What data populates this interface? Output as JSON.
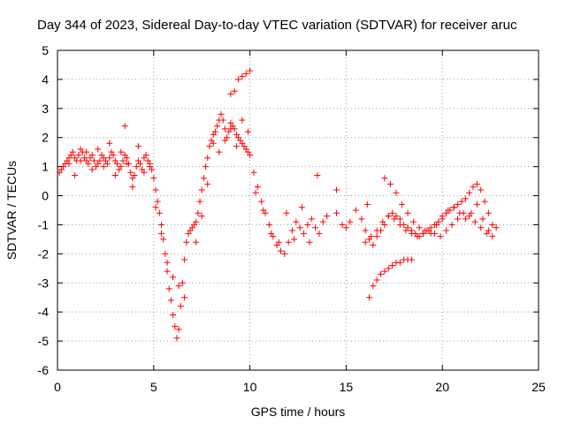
{
  "chart_data": {
    "type": "scatter",
    "title": "Day 344 of 2023, Sidereal Day-to-day VTEC variation (SDTVAR) for receiver aruc",
    "xlabel": "GPS time / hours",
    "ylabel": "SDTVAR / TECUs",
    "xlim": [
      0,
      25
    ],
    "ylim": [
      -6,
      5
    ],
    "x_ticks": [
      0,
      5,
      10,
      15,
      20,
      25
    ],
    "y_ticks": [
      -6,
      -5,
      -4,
      -3,
      -2,
      -1,
      0,
      1,
      2,
      3,
      4,
      5
    ],
    "grid": true,
    "marker": "+",
    "color": "#ff0000",
    "series": [
      {
        "name": "SDTVAR",
        "x": [
          0.1,
          0.2,
          0.3,
          0.4,
          0.5,
          0.6,
          0.7,
          0.8,
          0.9,
          1.0,
          1.1,
          1.2,
          1.3,
          1.4,
          1.5,
          1.6,
          1.7,
          1.8,
          1.9,
          2.0,
          2.1,
          2.2,
          2.3,
          2.4,
          2.5,
          2.6,
          2.7,
          2.8,
          2.9,
          3.0,
          3.1,
          3.2,
          3.3,
          3.4,
          3.5,
          3.6,
          3.7,
          3.8,
          3.9,
          4.0,
          4.1,
          4.2,
          4.3,
          4.4,
          4.5,
          4.6,
          4.7,
          4.8,
          4.9,
          5.0,
          5.1,
          5.2,
          5.3,
          5.4,
          5.5,
          5.6,
          5.7,
          5.8,
          5.9,
          6.0,
          6.1,
          6.2,
          6.3,
          6.4,
          6.5,
          6.6,
          6.7,
          6.8,
          6.9,
          7.0,
          7.1,
          7.2,
          7.3,
          7.4,
          7.5,
          7.6,
          7.7,
          7.8,
          7.9,
          8.0,
          8.1,
          8.2,
          8.3,
          8.4,
          8.5,
          8.6,
          8.7,
          8.8,
          8.9,
          9.0,
          9.1,
          9.2,
          9.3,
          9.4,
          9.5,
          9.6,
          9.7,
          9.8,
          9.9,
          10.0,
          10.2,
          10.4,
          10.6,
          10.8,
          11.0,
          11.2,
          11.4,
          11.6,
          11.8,
          12.0,
          12.2,
          12.4,
          12.6,
          12.8,
          13.0,
          13.2,
          13.4,
          13.6,
          13.8,
          14.0,
          14.5,
          14.8,
          15.0,
          15.2,
          15.5,
          15.8,
          16.0,
          16.2,
          16.4,
          16.6,
          16.8,
          17.0,
          17.2,
          17.4,
          17.6,
          17.8,
          18.0,
          18.2,
          18.4,
          18.6,
          18.8,
          19.0,
          19.2,
          19.4,
          19.6,
          19.8,
          20.0,
          20.2,
          20.4,
          20.6,
          20.8,
          21.0,
          21.2,
          21.4,
          21.6,
          21.8,
          22.0,
          22.2,
          22.4,
          22.6,
          22.8,
          0.6,
          0.9,
          1.2,
          1.5,
          1.8,
          2.1,
          2.4,
          2.7,
          3.0,
          3.3,
          3.6,
          3.9,
          4.2,
          4.5,
          4.8,
          5.1,
          5.4,
          5.7,
          6.0,
          6.3,
          6.6,
          7.2,
          7.5,
          7.8,
          8.1,
          8.4,
          8.7,
          9.0,
          9.3,
          9.6,
          9.9,
          10.3,
          10.7,
          11.1,
          11.5,
          11.9,
          12.3,
          12.7,
          13.1,
          13.5,
          16.2,
          16.4,
          16.6,
          16.8,
          17.0,
          17.2,
          17.4,
          17.6,
          17.8,
          18.0,
          18.2,
          18.4,
          16.0,
          16.3,
          16.6,
          16.9,
          17.2,
          17.5,
          17.8,
          18.1,
          18.4,
          18.7,
          19.0,
          19.3,
          19.6,
          19.9,
          20.2,
          20.5,
          20.8,
          21.1,
          21.4,
          21.7,
          22.0,
          22.3,
          22.6,
          17.0,
          17.3,
          17.6,
          17.9,
          18.2,
          18.5,
          18.8,
          19.1,
          19.4,
          19.7,
          20.0,
          20.3,
          20.6,
          20.9,
          21.2,
          21.5,
          21.8,
          22.1,
          22.4,
          3.5,
          9.0,
          9.2,
          9.4,
          9.6,
          9.8,
          10.0,
          14.5,
          16.1
        ],
        "y": [
          0.8,
          0.9,
          1.0,
          1.1,
          1.2,
          1.3,
          1.4,
          1.5,
          1.3,
          1.2,
          1.4,
          1.6,
          1.5,
          1.3,
          1.2,
          1.1,
          1.3,
          1.4,
          1.2,
          1.0,
          1.1,
          1.2,
          1.4,
          1.3,
          1.2,
          1.1,
          1.3,
          1.5,
          1.4,
          1.2,
          1.1,
          0.9,
          1.0,
          1.2,
          1.4,
          1.3,
          1.1,
          0.8,
          0.6,
          0.7,
          1.0,
          1.2,
          1.1,
          0.9,
          1.3,
          1.4,
          1.2,
          1.0,
          0.9,
          0.6,
          0.2,
          -0.2,
          -0.6,
          -1.0,
          -1.5,
          -2.0,
          -2.6,
          -3.2,
          -3.6,
          -4.1,
          -4.5,
          -4.9,
          -4.6,
          -3.8,
          -3.0,
          -2.2,
          -1.6,
          -1.3,
          -1.2,
          -1.1,
          -1.0,
          -0.9,
          -0.6,
          -0.2,
          0.2,
          0.6,
          1.0,
          1.3,
          1.7,
          1.9,
          2.1,
          2.2,
          2.4,
          2.6,
          2.8,
          2.6,
          2.3,
          2.0,
          2.2,
          2.5,
          2.4,
          2.3,
          2.1,
          2.0,
          1.9,
          1.8,
          1.7,
          1.6,
          1.5,
          1.4,
          0.8,
          0.3,
          -0.2,
          -0.6,
          -1.0,
          -1.4,
          -1.7,
          -1.9,
          -2.0,
          -1.6,
          -1.2,
          -0.9,
          -1.1,
          -1.3,
          -1.0,
          -0.8,
          -1.1,
          -1.3,
          -0.9,
          -0.7,
          -0.6,
          -1.0,
          -1.1,
          -0.9,
          -0.5,
          -0.8,
          -1.2,
          -1.5,
          -1.7,
          -1.4,
          -1.2,
          -1.0,
          -0.7,
          -0.6,
          -0.7,
          -0.8,
          -1.0,
          -1.1,
          -1.2,
          -1.3,
          -1.4,
          -1.3,
          -1.2,
          -1.1,
          -1.0,
          -0.9,
          -0.8,
          -0.6,
          -0.5,
          -0.4,
          -0.3,
          -0.2,
          -0.1,
          0.1,
          0.3,
          0.4,
          0.2,
          -0.2,
          -0.6,
          -1.0,
          -1.1,
          1.1,
          0.7,
          1.2,
          1.5,
          0.9,
          1.6,
          1.0,
          1.8,
          0.7,
          1.5,
          1.1,
          0.3,
          1.7,
          0.8,
          1.1,
          -0.4,
          -1.3,
          -2.3,
          -2.8,
          -3.1,
          -3.5,
          -1.6,
          -0.7,
          0.4,
          1.8,
          1.5,
          1.9,
          2.3,
          1.7,
          2.6,
          2.2,
          0.1,
          -0.5,
          -1.3,
          -1.6,
          -0.6,
          -1.5,
          -0.4,
          -1.6,
          0.7,
          -3.5,
          -3.1,
          -2.9,
          -2.7,
          -2.6,
          -2.5,
          -2.4,
          -2.3,
          -2.3,
          -2.2,
          -2.2,
          -2.2,
          -1.6,
          -1.4,
          -1.2,
          -0.9,
          -0.7,
          -0.8,
          -1.0,
          -1.2,
          -1.3,
          -1.4,
          -1.3,
          -1.2,
          -1.3,
          -1.4,
          -1.2,
          -1.0,
          -0.8,
          -0.6,
          -0.7,
          -0.9,
          -1.1,
          -1.3,
          -1.4,
          0.6,
          0.4,
          0.1,
          -0.3,
          -0.6,
          -0.9,
          -1.1,
          -1.2,
          -1.3,
          -1.0,
          -0.7,
          -0.5,
          -0.4,
          -0.6,
          -0.8,
          -0.6,
          -0.3,
          -0.8,
          -1.2,
          2.4,
          3.5,
          3.6,
          4.0,
          4.1,
          4.2,
          4.3,
          0.2,
          -0.3
        ]
      }
    ]
  }
}
